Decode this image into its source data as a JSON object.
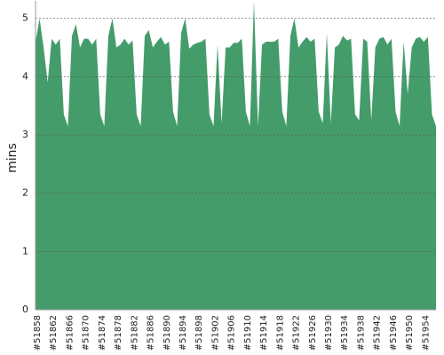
{
  "chart_data": {
    "type": "area",
    "y_label": "mins",
    "color": "#449c6b",
    "categories": [
      "#51858",
      null,
      null,
      null,
      "#51862",
      null,
      null,
      null,
      "#51866",
      null,
      null,
      null,
      "#51870",
      null,
      null,
      null,
      "#51874",
      null,
      null,
      null,
      "#51878",
      null,
      null,
      null,
      "#51882",
      null,
      null,
      null,
      "#51886",
      null,
      null,
      null,
      "#51890",
      null,
      null,
      null,
      "#51894",
      null,
      null,
      null,
      "#51898",
      null,
      null,
      null,
      "#51902",
      null,
      null,
      null,
      "#51906",
      null,
      null,
      null,
      "#51910",
      null,
      null,
      null,
      "#51914",
      null,
      null,
      null,
      "#51918",
      null,
      null,
      null,
      "#51922",
      null,
      null,
      null,
      "#51926",
      null,
      null,
      null,
      "#51930",
      null,
      null,
      null,
      "#51934",
      null,
      null,
      null,
      "#51938",
      null,
      null,
      null,
      "#51942",
      null,
      null,
      null,
      "#51946",
      null,
      null,
      null,
      "#51950",
      null,
      null,
      null,
      "#51954",
      null,
      null,
      null
    ],
    "values": [
      4.6,
      5.0,
      4.5,
      3.9,
      4.65,
      4.55,
      4.65,
      3.35,
      3.15,
      4.7,
      4.9,
      4.5,
      4.65,
      4.65,
      4.55,
      4.65,
      3.35,
      3.15,
      4.7,
      5.0,
      4.5,
      4.55,
      4.65,
      4.55,
      4.62,
      3.35,
      3.15,
      4.7,
      4.8,
      4.5,
      4.6,
      4.68,
      4.55,
      4.6,
      3.4,
      3.15,
      4.75,
      5.0,
      4.48,
      4.55,
      4.58,
      4.6,
      4.65,
      3.35,
      3.15,
      4.55,
      3.2,
      4.5,
      4.5,
      4.58,
      4.58,
      4.65,
      3.4,
      3.15,
      5.3,
      3.15,
      4.55,
      4.6,
      4.6,
      4.6,
      4.65,
      3.4,
      3.15,
      4.7,
      5.0,
      4.5,
      4.6,
      4.68,
      4.6,
      4.65,
      3.4,
      3.2,
      4.75,
      3.2,
      4.5,
      4.55,
      4.7,
      4.62,
      4.65,
      3.35,
      3.25,
      4.65,
      4.6,
      3.25,
      4.5,
      4.65,
      4.68,
      4.55,
      4.65,
      3.4,
      3.15,
      4.6,
      3.7,
      4.5,
      4.65,
      4.68,
      4.6,
      4.68,
      3.35,
      3.15
    ],
    "ylim": [
      0,
      5.3
    ],
    "yticks": [
      0,
      1,
      2,
      3,
      4,
      5
    ],
    "grid": true
  }
}
